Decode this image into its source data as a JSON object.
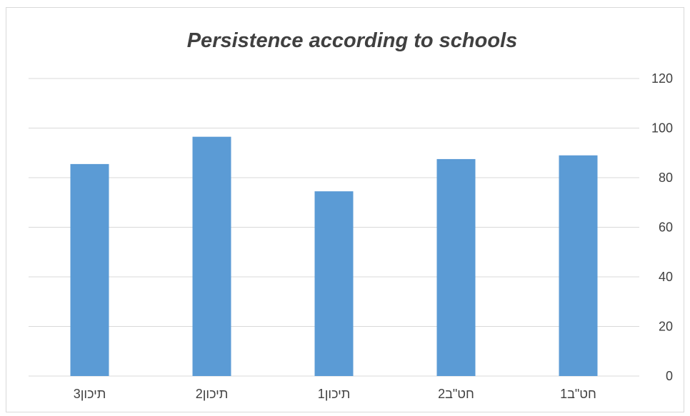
{
  "chart_data": {
    "type": "bar",
    "title": "Persistence according to schools",
    "xlabel": "",
    "ylabel": "",
    "categories": [
      "תיכון3",
      "תיכון2",
      "תיכון1",
      "חט\"ב2",
      "חט\"ב1"
    ],
    "values": [
      85.5,
      96.5,
      74.5,
      87.5,
      89
    ],
    "ylim": [
      0,
      120
    ],
    "yticks": [
      "0",
      "20",
      "40",
      "60",
      "80",
      "100",
      "120"
    ],
    "yaxis_position": "right",
    "grid": true,
    "legend": "none",
    "bar_color": "#5b9bd5"
  }
}
